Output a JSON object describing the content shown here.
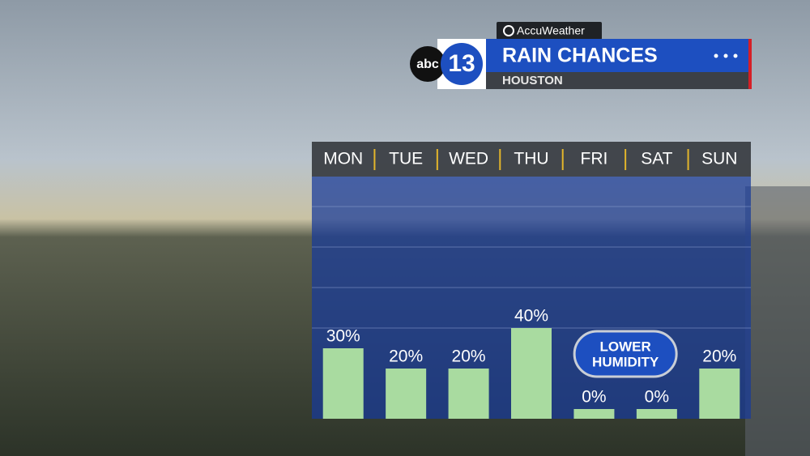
{
  "chart_data": {
    "type": "bar",
    "sponsor": "AccuWeather",
    "logo": {
      "network": "abc",
      "channel": "13"
    },
    "title": "RAIN CHANCES",
    "subtitle": "HOUSTON",
    "categories": [
      "MON",
      "TUE",
      "WED",
      "THU",
      "FRI",
      "SAT",
      "SUN"
    ],
    "values": [
      30,
      20,
      20,
      40,
      0,
      0,
      20
    ],
    "value_labels": [
      "30%",
      "20%",
      "20%",
      "40%",
      "0%",
      "0%",
      "20%"
    ],
    "color": "#a9dba0",
    "ylim": [
      0,
      100
    ],
    "gridlines": [
      40,
      60,
      80,
      100
    ],
    "annotation": [
      "LOWER",
      "HUMIDITY"
    ]
  }
}
